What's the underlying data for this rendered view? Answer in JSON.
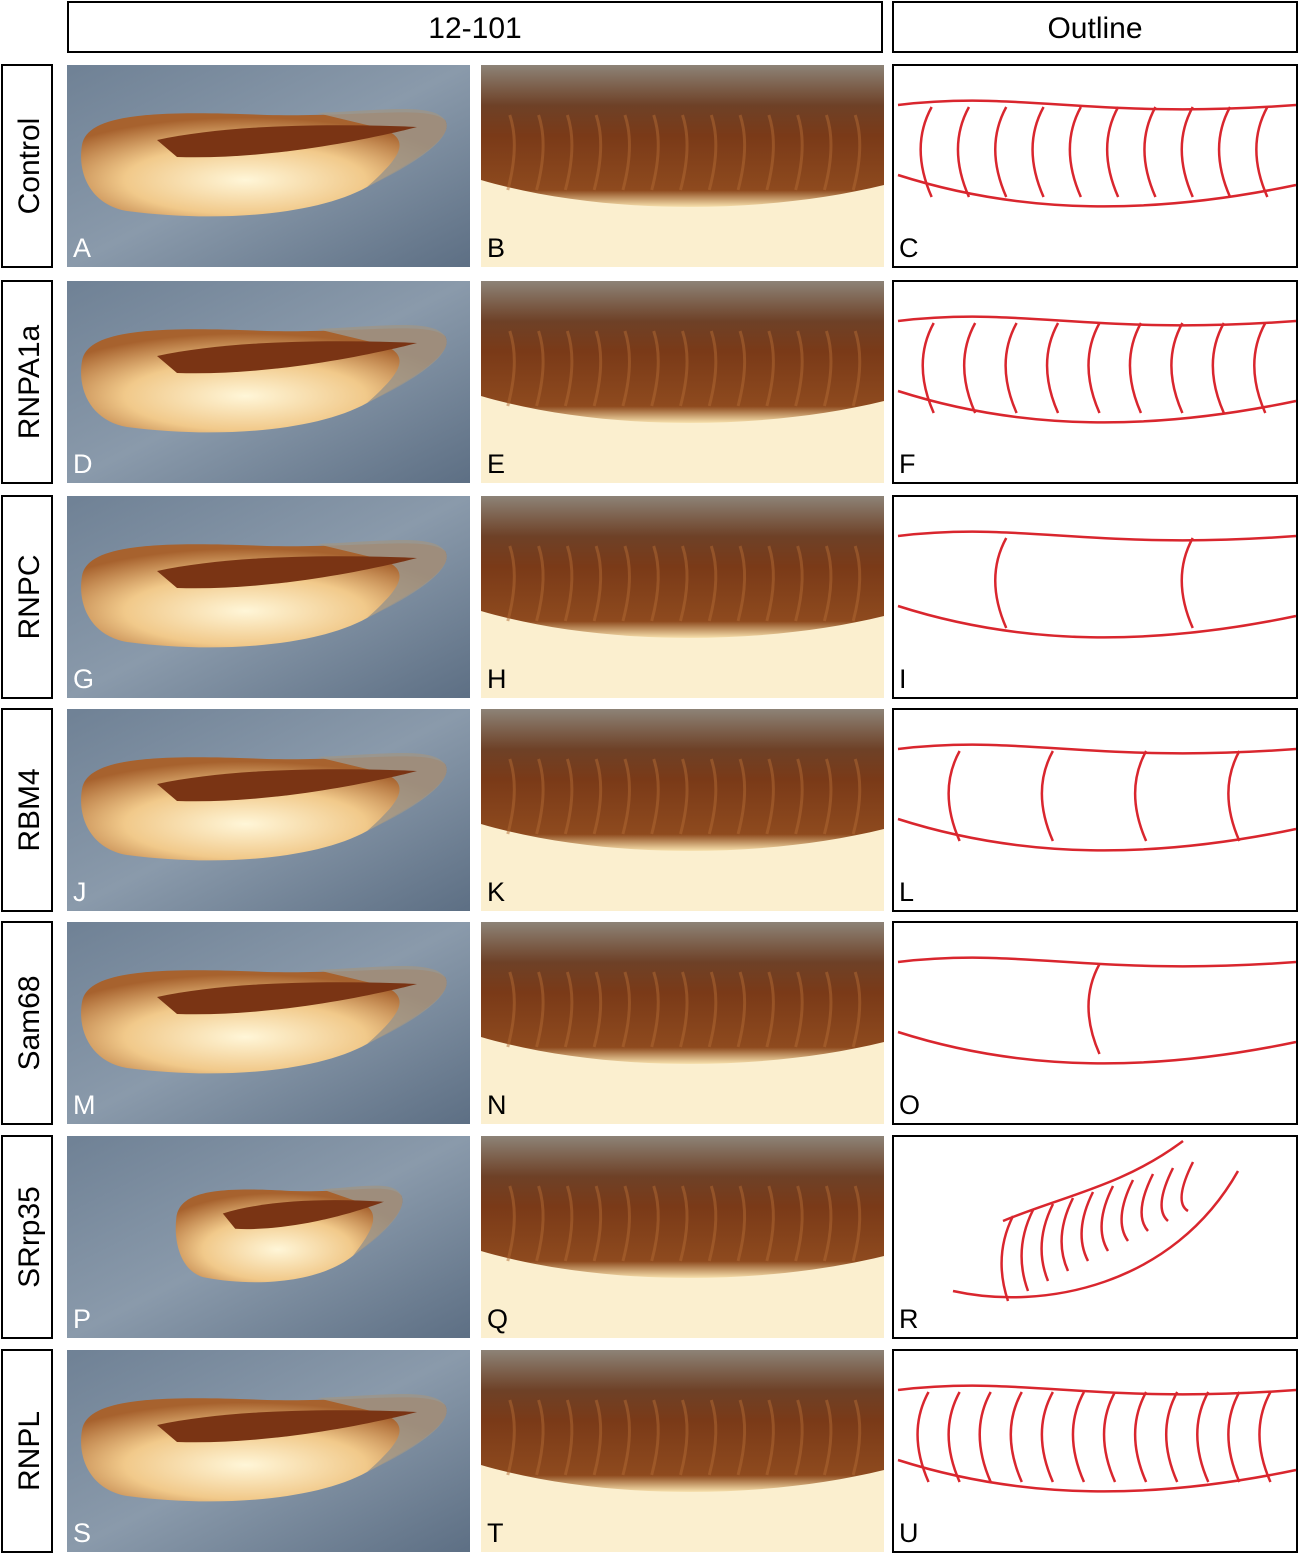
{
  "header": {
    "columns": [
      "12-101",
      "Outline"
    ]
  },
  "rows": [
    {
      "label": "Control",
      "panels": [
        "A",
        "B",
        "C"
      ]
    },
    {
      "label": "RNPA1a",
      "panels": [
        "D",
        "E",
        "F"
      ]
    },
    {
      "label": "RNPC",
      "panels": [
        "G",
        "H",
        "I"
      ]
    },
    {
      "label": "RBM4",
      "panels": [
        "J",
        "K",
        "L"
      ]
    },
    {
      "label": "Sam68",
      "panels": [
        "M",
        "N",
        "O"
      ]
    },
    {
      "label": "SRrp35",
      "panels": [
        "P",
        "Q",
        "R"
      ]
    },
    {
      "label": "RNPL",
      "panels": [
        "S",
        "T",
        "U"
      ]
    }
  ]
}
